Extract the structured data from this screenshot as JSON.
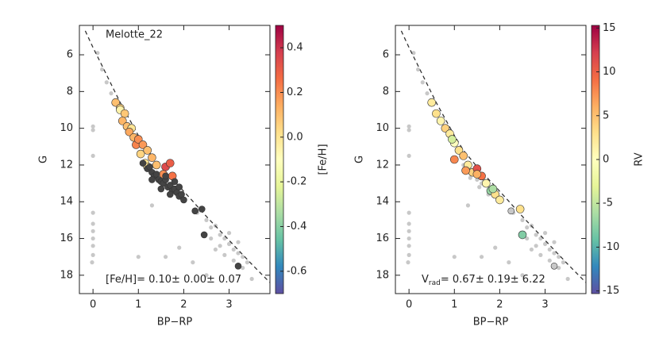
{
  "chart_data": [
    {
      "type": "scatter",
      "annotation": "Melotte_22",
      "stat_label": "[Fe/H]",
      "stat_text": "=  0.10±  0.00±  0.07",
      "xlabel": "BP−RP",
      "ylabel": "G",
      "colorbar_label": "[Fe/H]",
      "xlim": [
        -0.3,
        3.9
      ],
      "ylim": [
        19,
        4.4
      ],
      "xticks": [
        0,
        1,
        2,
        3
      ],
      "yticks": [
        6,
        8,
        10,
        12,
        14,
        16,
        18
      ],
      "clim": [
        -0.7,
        0.5
      ],
      "cticks": [
        -0.6,
        -0.4,
        -0.2,
        {
          "value": 0,
          "label": "0.0"
        },
        0.2,
        0.4
      ],
      "colormap": [
        "#5e4fa2",
        "#3288bd",
        "#66c2a5",
        "#abdda4",
        "#e6f598",
        "#ffffbf",
        "#fee08b",
        "#fdae61",
        "#f46d43",
        "#d53e4f",
        "#9e0142"
      ],
      "null_color": "#444444",
      "field": {
        "color": "#c8c8c8",
        "x": [
          0,
          0,
          0,
          0,
          0,
          0,
          0,
          0,
          0,
          -0.02,
          0.1,
          0.2,
          0.3,
          0.4,
          1.3,
          2.3,
          2.5,
          2.6,
          2.7,
          2.8,
          2.9,
          3.0,
          3.1,
          3.2,
          3.3,
          2.8,
          2.9,
          3.0,
          3.1,
          3.4,
          3.2,
          2.6,
          2.7,
          1.9,
          2.2,
          1.6,
          1.0,
          2.5,
          3.5,
          3.3
        ],
        "y": [
          9.9,
          10.1,
          11.5,
          14.6,
          15.2,
          15.6,
          16.0,
          16.4,
          16.9,
          17.3,
          5.9,
          6.8,
          7.5,
          8.1,
          14.2,
          14.6,
          15.0,
          15.4,
          15.3,
          15.8,
          16.0,
          16.3,
          16.6,
          16.8,
          17.0,
          16.4,
          16.9,
          15.7,
          17.2,
          17.3,
          16.2,
          16.0,
          16.6,
          16.5,
          17.3,
          17.0,
          17.0,
          18.0,
          18.2,
          17.6
        ]
      },
      "isochrone": {
        "color": "#333333",
        "x": [
          -0.17,
          0,
          0.2,
          0.4,
          0.6,
          0.8,
          1.0,
          1.2,
          1.5,
          1.8,
          2.1,
          2.5,
          3.0,
          3.5,
          3.9
        ],
        "y": [
          4.7,
          5.6,
          6.6,
          7.6,
          8.6,
          9.5,
          10.4,
          11.2,
          12.1,
          12.9,
          13.7,
          14.8,
          16.1,
          17.4,
          18.4
        ]
      },
      "members": {
        "x": [
          0.5,
          0.6,
          0.6,
          0.7,
          0.65,
          0.75,
          0.85,
          0.8,
          0.9,
          0.95,
          1.0,
          1.1,
          1.05,
          1.2,
          1.15,
          1.3,
          1.2,
          1.4,
          1.55,
          1.6,
          1.7,
          1.75,
          1.1,
          1.2,
          1.25,
          1.3,
          1.35,
          1.4,
          1.45,
          1.5,
          1.55,
          1.6,
          1.65,
          1.7,
          1.75,
          1.8,
          1.85,
          1.9,
          1.95,
          2.0,
          1.3,
          1.5,
          1.7,
          1.9,
          1.6,
          1.8,
          2.4,
          2.45,
          2.25,
          3.2
        ],
        "y": [
          8.6,
          8.9,
          9.0,
          9.2,
          9.6,
          9.9,
          10.0,
          10.2,
          10.5,
          10.9,
          10.6,
          10.9,
          11.4,
          11.2,
          11.9,
          11.6,
          12.1,
          12.0,
          12.5,
          12.1,
          11.9,
          12.6,
          11.9,
          12.2,
          12.1,
          12.4,
          12.6,
          12.5,
          12.8,
          12.9,
          13.0,
          12.8,
          13.2,
          13.1,
          13.4,
          13.3,
          13.5,
          13.7,
          13.6,
          13.9,
          12.8,
          13.3,
          13.6,
          13.2,
          12.6,
          12.9,
          14.4,
          15.8,
          14.5,
          17.5
        ],
        "c": [
          0.1,
          0.05,
          -0.05,
          0.08,
          0.12,
          0.1,
          0.0,
          0.15,
          0.12,
          0.22,
          0.2,
          0.18,
          0.05,
          0.1,
          0.0,
          0.12,
          0.0,
          0.1,
          0.2,
          0.35,
          0.3,
          0.25,
          null,
          null,
          null,
          null,
          null,
          null,
          null,
          null,
          null,
          null,
          null,
          null,
          null,
          null,
          null,
          null,
          null,
          null,
          null,
          null,
          null,
          null,
          null,
          null,
          null,
          null,
          null,
          null
        ]
      }
    },
    {
      "type": "scatter",
      "stat_label": "V",
      "stat_sub": "rad",
      "stat_text": "=     0.67±  0.19±  6.22",
      "xlabel": "BP−RP",
      "ylabel": "G",
      "colorbar_label": "RV",
      "xlim": [
        -0.3,
        3.9
      ],
      "ylim": [
        19,
        4.4
      ],
      "xticks": [
        0,
        1,
        2,
        3
      ],
      "yticks": [
        6,
        8,
        10,
        12,
        14,
        16,
        18
      ],
      "clim": [
        -15.3,
        15.3
      ],
      "cticks": [
        -15,
        -10,
        -5,
        0,
        5,
        10,
        15
      ],
      "colormap": [
        "#5e4fa2",
        "#3288bd",
        "#66c2a5",
        "#abdda4",
        "#e6f598",
        "#ffffbf",
        "#fee08b",
        "#fdae61",
        "#f46d43",
        "#d53e4f",
        "#9e0142"
      ],
      "null_color": "#c8c8c8",
      "field": {
        "color": "#c8c8c8",
        "x": [
          0,
          0,
          0,
          0,
          0,
          0,
          0,
          0,
          0,
          -0.02,
          0.1,
          0.2,
          0.3,
          0.4,
          1.3,
          2.3,
          2.5,
          2.6,
          2.7,
          2.8,
          2.9,
          3.0,
          3.1,
          3.2,
          3.3,
          2.8,
          2.9,
          3.0,
          3.1,
          3.4,
          3.2,
          2.6,
          2.7,
          1.9,
          2.2,
          1.6,
          1.0,
          2.5,
          3.5,
          3.3,
          1.2,
          1.3,
          1.4,
          1.5,
          1.6,
          1.7,
          1.8,
          1.9,
          1.35,
          1.55,
          1.75,
          1.65
        ],
        "y": [
          9.9,
          10.1,
          11.5,
          14.6,
          15.2,
          15.6,
          16.0,
          16.4,
          16.9,
          17.3,
          5.9,
          6.8,
          7.5,
          8.1,
          14.2,
          14.6,
          15.0,
          15.4,
          15.3,
          15.8,
          16.0,
          16.3,
          16.6,
          16.8,
          17.0,
          16.4,
          16.9,
          15.7,
          17.2,
          17.3,
          16.2,
          16.0,
          16.6,
          16.5,
          17.3,
          17.0,
          17.0,
          18.0,
          18.2,
          17.6,
          12.0,
          12.3,
          12.5,
          12.8,
          13.0,
          13.1,
          13.3,
          13.5,
          12.7,
          13.2,
          13.6,
          12.9
        ]
      },
      "isochrone": {
        "color": "#333333",
        "x": [
          -0.17,
          0,
          0.2,
          0.4,
          0.6,
          0.8,
          1.0,
          1.2,
          1.5,
          1.8,
          2.1,
          2.5,
          3.0,
          3.5,
          3.9
        ],
        "y": [
          4.7,
          5.6,
          6.6,
          7.6,
          8.6,
          9.5,
          10.4,
          11.2,
          12.1,
          12.9,
          13.7,
          14.8,
          16.1,
          17.4,
          18.4
        ]
      },
      "members": {
        "x": [
          0.5,
          0.6,
          0.7,
          0.8,
          0.9,
          1.0,
          1.0,
          1.1,
          1.2,
          1.3,
          1.4,
          1.5,
          1.6,
          1.7,
          1.8,
          1.9,
          2.0,
          1.5,
          1.85,
          2.45,
          2.5,
          2.25,
          3.2,
          0.95,
          1.25
        ],
        "y": [
          8.6,
          9.2,
          9.6,
          10.0,
          10.3,
          10.8,
          11.7,
          11.2,
          11.5,
          12.0,
          12.4,
          12.2,
          12.6,
          13.0,
          13.4,
          13.6,
          13.9,
          12.5,
          13.3,
          14.4,
          15.8,
          14.5,
          17.5,
          10.6,
          12.3
        ],
        "c": [
          2,
          3,
          1,
          4,
          2,
          0,
          8,
          3,
          5,
          2,
          4,
          11,
          9,
          1,
          -7,
          3,
          2,
          6,
          -6,
          3,
          -8,
          null,
          null,
          -4,
          7
        ]
      }
    }
  ]
}
